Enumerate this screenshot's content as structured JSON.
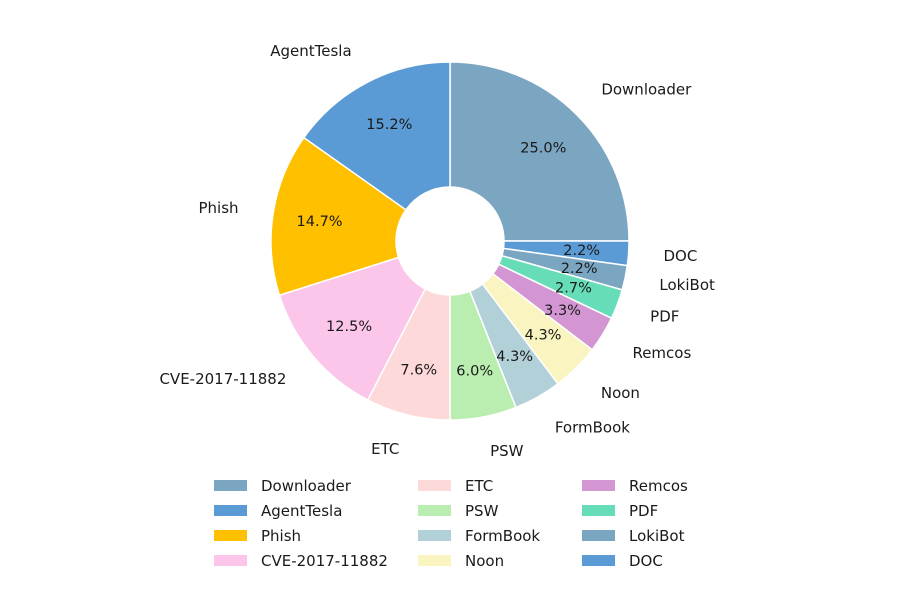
{
  "chart_data": {
    "type": "pie",
    "donut": true,
    "start": "top, clockwise",
    "slices": [
      {
        "label": "Downloader",
        "value": 25.0,
        "pct_label": "25.0%",
        "color": "#7aa6c2"
      },
      {
        "label": "DOC",
        "value": 2.2,
        "pct_label": "2.2%",
        "color": "#5b9bd5"
      },
      {
        "label": "LokiBot",
        "value": 2.2,
        "pct_label": "2.2%",
        "color": "#7aa6c2"
      },
      {
        "label": "PDF",
        "value": 2.7,
        "pct_label": "2.7%",
        "color": "#66ddb8"
      },
      {
        "label": "Remcos",
        "value": 3.3,
        "pct_label": "3.3%",
        "color": "#d396d3"
      },
      {
        "label": "Noon",
        "value": 4.3,
        "pct_label": "4.3%",
        "color": "#faf5c0"
      },
      {
        "label": "FormBook",
        "value": 4.3,
        "pct_label": "4.3%",
        "color": "#b2d0d8"
      },
      {
        "label": "PSW",
        "value": 6.0,
        "pct_label": "6.0%",
        "color": "#b9eeb0"
      },
      {
        "label": "ETC",
        "value": 7.6,
        "pct_label": "7.6%",
        "color": "#fdd9d9"
      },
      {
        "label": "CVE-2017-11882",
        "value": 12.5,
        "pct_label": "12.5%",
        "color": "#fcc6ea"
      },
      {
        "label": "Phish",
        "value": 14.7,
        "pct_label": "14.7%",
        "color": "#ffc000"
      },
      {
        "label": "AgentTesla",
        "value": 15.2,
        "pct_label": "15.2%",
        "color": "#5b9bd5"
      }
    ],
    "legend": {
      "placement": "bottom",
      "columns": [
        [
          "Downloader",
          "AgentTesla",
          "Phish",
          "CVE-2017-11882"
        ],
        [
          "ETC",
          "PSW",
          "FormBook",
          "Noon"
        ],
        [
          "Remcos",
          "PDF",
          "LokiBot",
          "DOC"
        ]
      ]
    }
  }
}
